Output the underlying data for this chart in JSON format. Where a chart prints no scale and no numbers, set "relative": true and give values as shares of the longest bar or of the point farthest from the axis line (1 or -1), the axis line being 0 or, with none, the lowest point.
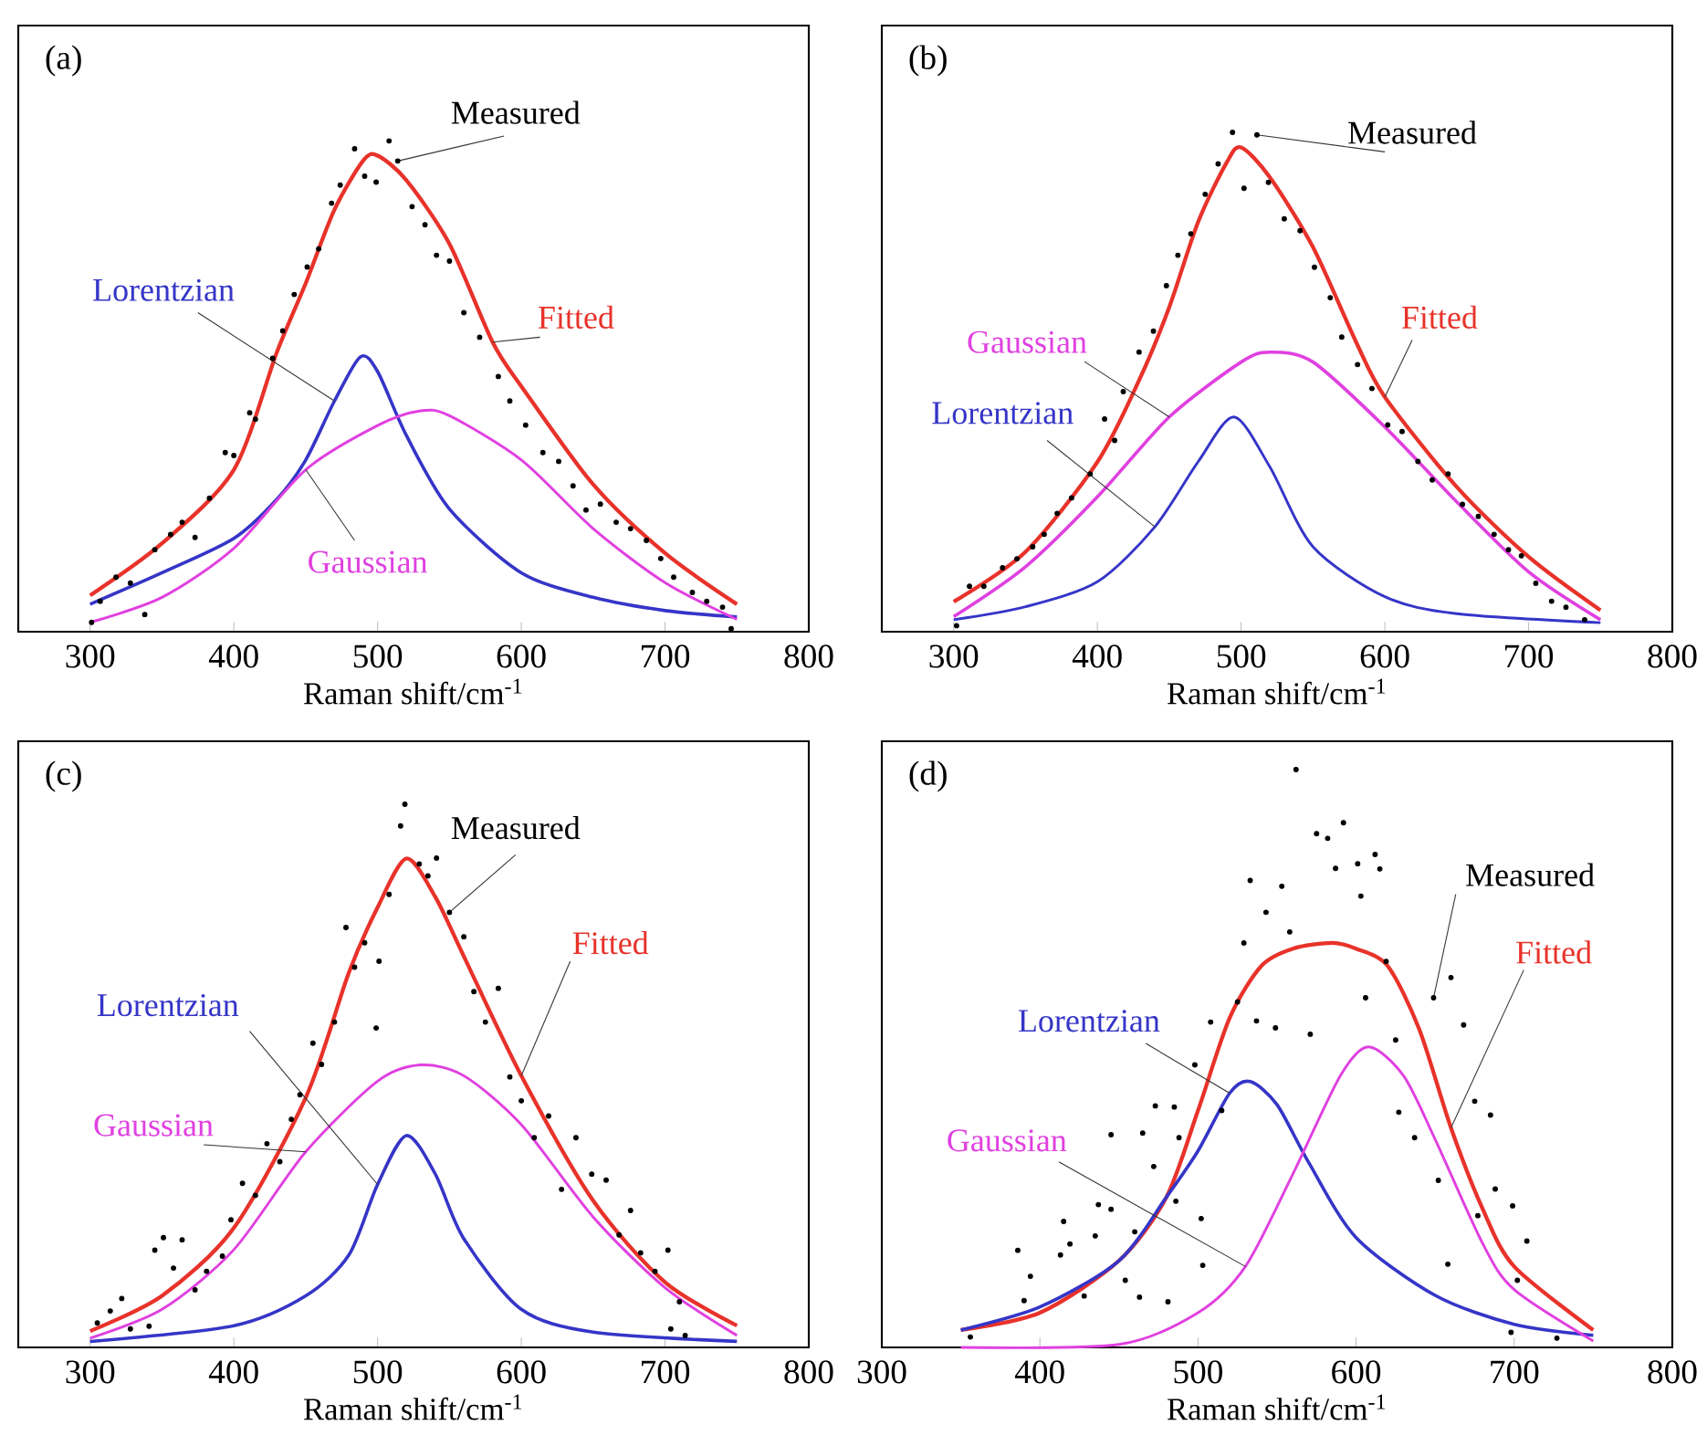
{
  "chart_data": [
    {
      "type": "line",
      "title": "(a)",
      "xlabel": "Raman shift/cm$^{-1}$",
      "relative": true,
      "xlim": [
        250,
        800
      ],
      "xticks": [
        300,
        400,
        500,
        600,
        700,
        800
      ],
      "series": [
        {
          "name": "Measured",
          "type": "scatter",
          "marker": "circle",
          "color": "#000000",
          "x": [
            301,
            307,
            318,
            328,
            338,
            345,
            356,
            364,
            373,
            383,
            394,
            400,
            411,
            415,
            427,
            434,
            442,
            451,
            459,
            468,
            474,
            484,
            491,
            499,
            508,
            514,
            524,
            533,
            541,
            550,
            560,
            571,
            584,
            592,
            603,
            615,
            626,
            636,
            645,
            655,
            666,
            676,
            687,
            697,
            706,
            719,
            729,
            740,
            746
          ],
          "values": [
            0.019,
            0.062,
            0.111,
            0.099,
            0.035,
            0.167,
            0.198,
            0.223,
            0.192,
            0.272,
            0.365,
            0.359,
            0.446,
            0.433,
            0.557,
            0.613,
            0.687,
            0.743,
            0.78,
            0.873,
            0.91,
            0.984,
            0.928,
            0.916,
            1.0,
            0.959,
            0.866,
            0.829,
            0.767,
            0.755,
            0.65,
            0.6,
            0.52,
            0.47,
            0.421,
            0.365,
            0.347,
            0.297,
            0.248,
            0.26,
            0.223,
            0.21,
            0.186,
            0.149,
            0.111,
            0.08,
            0.062,
            0.05,
            0.006
          ]
        },
        {
          "name": "Fitted",
          "type": "line",
          "color": "#e8322a",
          "x": [
            300,
            350,
            400,
            430,
            450,
            470,
            490,
            500,
            520,
            550,
            580,
            600,
            650,
            700,
            750
          ],
          "values": [
            0.074,
            0.18,
            0.33,
            0.57,
            0.71,
            0.86,
            0.96,
            0.97,
            0.92,
            0.79,
            0.59,
            0.5,
            0.3,
            0.16,
            0.056
          ]
        },
        {
          "name": "Lorentzian",
          "type": "line",
          "color": "#3535c8",
          "x": [
            300,
            350,
            400,
            430,
            450,
            470,
            488,
            500,
            520,
            550,
            600,
            650,
            700,
            750
          ],
          "values": [
            0.056,
            0.12,
            0.19,
            0.27,
            0.35,
            0.47,
            0.56,
            0.53,
            0.4,
            0.25,
            0.12,
            0.07,
            0.043,
            0.03
          ]
        },
        {
          "name": "Gaussian",
          "type": "line",
          "color": "#e040e0",
          "x": [
            300,
            350,
            400,
            450,
            500,
            530,
            550,
            600,
            650,
            700,
            750
          ],
          "values": [
            0.019,
            0.07,
            0.17,
            0.33,
            0.42,
            0.45,
            0.44,
            0.35,
            0.21,
            0.1,
            0.025
          ]
        }
      ]
    },
    {
      "type": "line",
      "title": "(b)",
      "xlabel": "Raman shift/cm$^{-1}$",
      "relative": true,
      "xlim": [
        250,
        800
      ],
      "xticks": [
        300,
        400,
        500,
        600,
        700,
        800
      ],
      "series": [
        {
          "name": "Measured",
          "type": "scatter",
          "marker": "circle",
          "color": "#000000",
          "x": [
            302,
            311,
            321,
            334,
            344,
            355,
            363,
            372,
            382,
            395,
            405,
            412,
            418,
            429,
            439,
            448,
            456,
            465,
            475,
            484,
            494,
            502,
            511,
            519,
            530,
            541,
            551,
            562,
            570,
            581,
            591,
            602,
            612,
            623,
            633,
            644,
            654,
            665,
            676,
            686,
            695,
            705,
            716,
            726,
            739
          ],
          "values": [
            0.012,
            0.091,
            0.091,
            0.128,
            0.146,
            0.17,
            0.195,
            0.237,
            0.268,
            0.316,
            0.426,
            0.383,
            0.481,
            0.56,
            0.602,
            0.693,
            0.754,
            0.797,
            0.876,
            0.937,
            1.0,
            0.888,
            0.995,
            0.9,
            0.827,
            0.803,
            0.73,
            0.669,
            0.59,
            0.535,
            0.487,
            0.414,
            0.401,
            0.341,
            0.304,
            0.316,
            0.255,
            0.231,
            0.195,
            0.164,
            0.152,
            0.097,
            0.061,
            0.049,
            0.024
          ]
        },
        {
          "name": "Fitted",
          "type": "line",
          "color": "#e8322a",
          "x": [
            300,
            350,
            400,
            430,
            450,
            470,
            490,
            500,
            520,
            550,
            580,
            600,
            650,
            700,
            750
          ],
          "values": [
            0.06,
            0.16,
            0.34,
            0.51,
            0.65,
            0.82,
            0.94,
            0.97,
            0.91,
            0.77,
            0.58,
            0.47,
            0.29,
            0.15,
            0.043
          ]
        },
        {
          "name": "Gaussian",
          "type": "line",
          "color": "#e040e0",
          "x": [
            300,
            350,
            400,
            450,
            500,
            520,
            550,
            600,
            650,
            700,
            750
          ],
          "values": [
            0.03,
            0.13,
            0.27,
            0.43,
            0.54,
            0.56,
            0.54,
            0.41,
            0.26,
            0.12,
            0.024
          ]
        },
        {
          "name": "Lorentzian",
          "type": "line",
          "color": "#3535c8",
          "x": [
            300,
            350,
            400,
            440,
            470,
            495,
            520,
            550,
            600,
            650,
            750
          ],
          "values": [
            0.024,
            0.05,
            0.1,
            0.21,
            0.34,
            0.43,
            0.33,
            0.17,
            0.07,
            0.036,
            0.018
          ]
        }
      ]
    },
    {
      "type": "line",
      "title": "(c)",
      "xlabel": "Raman shift/cm$^{-1}$",
      "relative": true,
      "xlim": [
        250,
        800
      ],
      "xticks": [
        300,
        400,
        500,
        600,
        700,
        800
      ],
      "series": [
        {
          "name": "Measured",
          "type": "scatter",
          "marker": "circle",
          "color": "#000000",
          "x": [
            305,
            314,
            322,
            328,
            341,
            345,
            351,
            358,
            364,
            373,
            381,
            392,
            398,
            406,
            415,
            423,
            432,
            440,
            446,
            455,
            461,
            470,
            478,
            484,
            491,
            499,
            501,
            508,
            516,
            519,
            529,
            535,
            541,
            550,
            560,
            567,
            575,
            584,
            592,
            600,
            609,
            619,
            628,
            638,
            649,
            659,
            668,
            676,
            683,
            693,
            702,
            704,
            710,
            714
          ],
          "values": [
            0.045,
            0.067,
            0.09,
            0.034,
            0.039,
            0.179,
            0.202,
            0.146,
            0.198,
            0.106,
            0.14,
            0.168,
            0.235,
            0.302,
            0.28,
            0.375,
            0.342,
            0.42,
            0.465,
            0.56,
            0.521,
            0.599,
            0.773,
            0.7,
            0.745,
            0.588,
            0.711,
            0.834,
            0.96,
            1.0,
            0.89,
            0.868,
            0.901,
            0.801,
            0.756,
            0.655,
            0.599,
            0.661,
            0.498,
            0.454,
            0.386,
            0.426,
            0.291,
            0.386,
            0.319,
            0.308,
            0.207,
            0.252,
            0.174,
            0.14,
            0.179,
            0.034,
            0.084,
            0.022
          ]
        },
        {
          "name": "Fitted",
          "type": "line",
          "color": "#e8322a",
          "x": [
            300,
            350,
            400,
            450,
            480,
            500,
            520,
            540,
            560,
            600,
            650,
            700,
            750
          ],
          "values": [
            0.03,
            0.095,
            0.22,
            0.46,
            0.69,
            0.81,
            0.9,
            0.83,
            0.72,
            0.5,
            0.27,
            0.12,
            0.04
          ]
        },
        {
          "name": "Lorentzian",
          "type": "line",
          "color": "#3535c8",
          "x": [
            300,
            400,
            450,
            480,
            500,
            520,
            540,
            560,
            600,
            650,
            750
          ],
          "values": [
            0.011,
            0.04,
            0.095,
            0.17,
            0.3,
            0.39,
            0.32,
            0.2,
            0.07,
            0.028,
            0.011
          ]
        },
        {
          "name": "Gaussian",
          "type": "line",
          "color": "#e040e0",
          "x": [
            300,
            350,
            400,
            450,
            500,
            530,
            560,
            600,
            650,
            700,
            750
          ],
          "values": [
            0.017,
            0.07,
            0.18,
            0.36,
            0.49,
            0.52,
            0.5,
            0.41,
            0.24,
            0.11,
            0.022
          ]
        }
      ]
    },
    {
      "type": "line",
      "title": "(d)",
      "xlabel": "Raman shift/cm$^{-1}$",
      "relative": true,
      "xlim": [
        300,
        800
      ],
      "xticks": [
        300,
        400,
        500,
        600,
        700,
        800
      ],
      "series": [
        {
          "name": "Measured",
          "type": "scatter",
          "marker": "circle",
          "color": "#000000",
          "x": [
            356,
            386,
            390,
            394,
            413,
            415,
            419,
            428,
            435,
            437,
            445,
            445,
            454,
            460,
            463,
            465,
            472,
            473,
            481,
            485,
            486,
            488,
            498,
            502,
            503,
            508,
            515,
            525,
            529,
            533,
            537,
            543,
            549,
            553,
            558,
            562,
            571,
            575,
            582,
            587,
            592,
            601,
            603,
            606,
            612,
            615,
            619,
            625,
            627,
            637,
            649,
            652,
            658,
            660,
            668,
            675,
            677,
            685,
            688,
            698,
            699,
            702,
            708,
            727
          ],
          "values": [
            0.018,
            0.168,
            0.081,
            0.123,
            0.16,
            0.218,
            0.179,
            0.089,
            0.193,
            0.247,
            0.368,
            0.239,
            0.116,
            0.2,
            0.087,
            0.371,
            0.313,
            0.418,
            0.079,
            0.416,
            0.253,
            0.363,
            0.489,
            0.223,
            0.142,
            0.563,
            0.41,
            0.598,
            0.7,
            0.808,
            0.565,
            0.753,
            0.553,
            0.798,
            0.719,
            1.0,
            0.542,
            0.889,
            0.881,
            0.829,
            0.908,
            0.837,
            0.781,
            0.605,
            0.853,
            0.828,
            0.668,
            0.532,
            0.407,
            0.363,
            0.605,
            0.289,
            0.144,
            0.64,
            0.558,
            0.426,
            0.228,
            0.402,
            0.274,
            0.026,
            0.245,
            0.116,
            0.184,
            0.016
          ]
        },
        {
          "name": "Fitted",
          "type": "line",
          "color": "#e8322a",
          "x": [
            350,
            400,
            450,
            480,
            500,
            520,
            540,
            560,
            585,
            600,
            620,
            640,
            660,
            680,
            700,
            750
          ],
          "values": [
            0.03,
            0.06,
            0.15,
            0.26,
            0.41,
            0.57,
            0.66,
            0.69,
            0.7,
            0.69,
            0.66,
            0.55,
            0.38,
            0.24,
            0.14,
            0.03
          ]
        },
        {
          "name": "Lorentzian",
          "type": "line",
          "color": "#3535c8",
          "x": [
            350,
            400,
            450,
            480,
            500,
            520,
            533,
            550,
            570,
            600,
            650,
            700,
            750
          ],
          "values": [
            0.03,
            0.07,
            0.15,
            0.26,
            0.34,
            0.44,
            0.46,
            0.42,
            0.32,
            0.19,
            0.09,
            0.04,
            0.021
          ]
        },
        {
          "name": "Gaussian",
          "type": "line",
          "color": "#e040e0",
          "x": [
            350,
            450,
            500,
            530,
            560,
            590,
            608,
            630,
            650,
            680,
            700,
            750
          ],
          "values": [
            0,
            0.005,
            0.06,
            0.14,
            0.3,
            0.47,
            0.52,
            0.47,
            0.36,
            0.18,
            0.1,
            0.011
          ]
        }
      ]
    }
  ]
}
